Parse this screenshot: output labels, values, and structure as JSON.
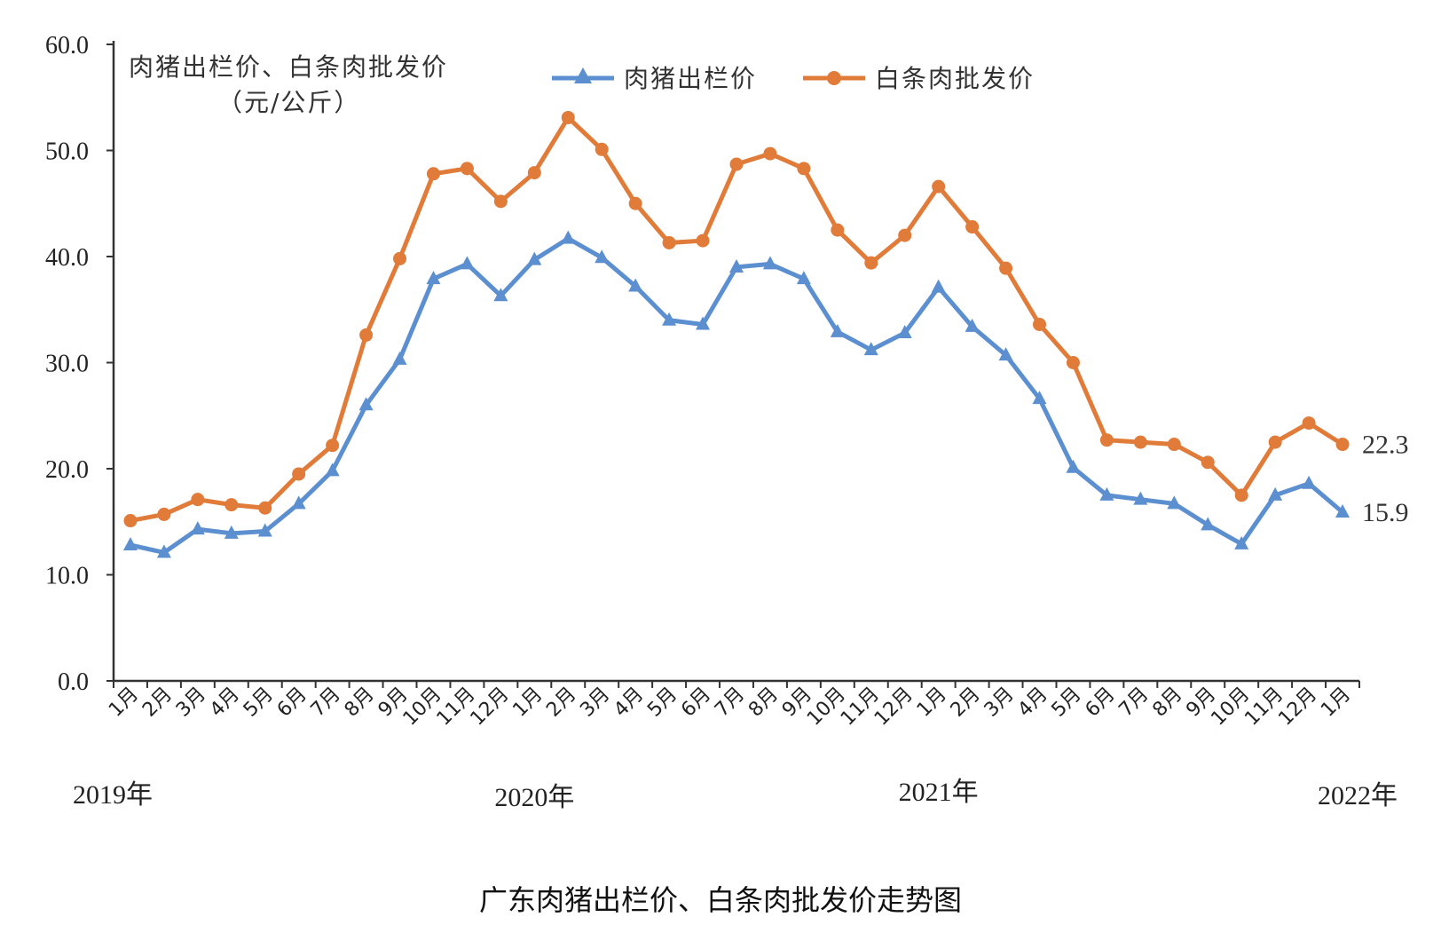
{
  "chart_data": {
    "type": "line",
    "unit_label_line1": "肉猪出栏价、白条肉批发价",
    "unit_label_line2": "（元/公斤）",
    "caption": "广东肉猪出栏价、白条肉批发价走势图",
    "ylim": [
      0,
      60
    ],
    "yticks": [
      "0.0",
      "10.0",
      "20.0",
      "30.0",
      "40.0",
      "50.0",
      "60.0"
    ],
    "categories": [
      "1月",
      "2月",
      "3月",
      "4月",
      "5月",
      "6月",
      "7月",
      "8月",
      "9月",
      "10月",
      "11月",
      "12月",
      "1月",
      "2月",
      "3月",
      "4月",
      "5月",
      "6月",
      "7月",
      "8月",
      "9月",
      "10月",
      "11月",
      "12月",
      "1月",
      "2月",
      "3月",
      "4月",
      "5月",
      "6月",
      "7月",
      "8月",
      "9月",
      "10月",
      "11月",
      "12月",
      "1月"
    ],
    "years": [
      {
        "label": "2019年",
        "index": 0
      },
      {
        "label": "2020年",
        "index": 12
      },
      {
        "label": "2021年",
        "index": 24
      },
      {
        "label": "2022年",
        "index": 36
      }
    ],
    "legend_position": "top-center",
    "grid": false,
    "series": [
      {
        "name": "肉猪出栏价",
        "color": "#5b8fd0",
        "marker": "triangle",
        "values": [
          12.8,
          12.1,
          14.3,
          13.9,
          14.1,
          16.7,
          19.8,
          26.0,
          30.3,
          37.9,
          39.3,
          36.3,
          39.7,
          41.7,
          39.9,
          37.2,
          34.0,
          33.6,
          39.0,
          39.3,
          37.9,
          32.9,
          31.2,
          32.8,
          37.1,
          33.4,
          30.7,
          26.6,
          20.1,
          17.5,
          17.1,
          16.7,
          14.7,
          12.9,
          17.5,
          18.6,
          15.9
        ],
        "end_label": "15.9"
      },
      {
        "name": "白条肉批发价",
        "color": "#e07b39",
        "marker": "circle",
        "values": [
          15.1,
          15.7,
          17.1,
          16.6,
          16.3,
          19.5,
          22.2,
          32.6,
          39.8,
          47.8,
          48.3,
          45.2,
          47.9,
          53.1,
          50.1,
          45.0,
          41.3,
          41.5,
          48.7,
          49.7,
          48.3,
          42.5,
          39.4,
          42.0,
          46.6,
          42.8,
          38.9,
          33.6,
          30.0,
          22.7,
          22.5,
          22.3,
          20.6,
          17.5,
          22.5,
          24.3,
          22.3
        ],
        "end_label": "22.3"
      }
    ]
  }
}
